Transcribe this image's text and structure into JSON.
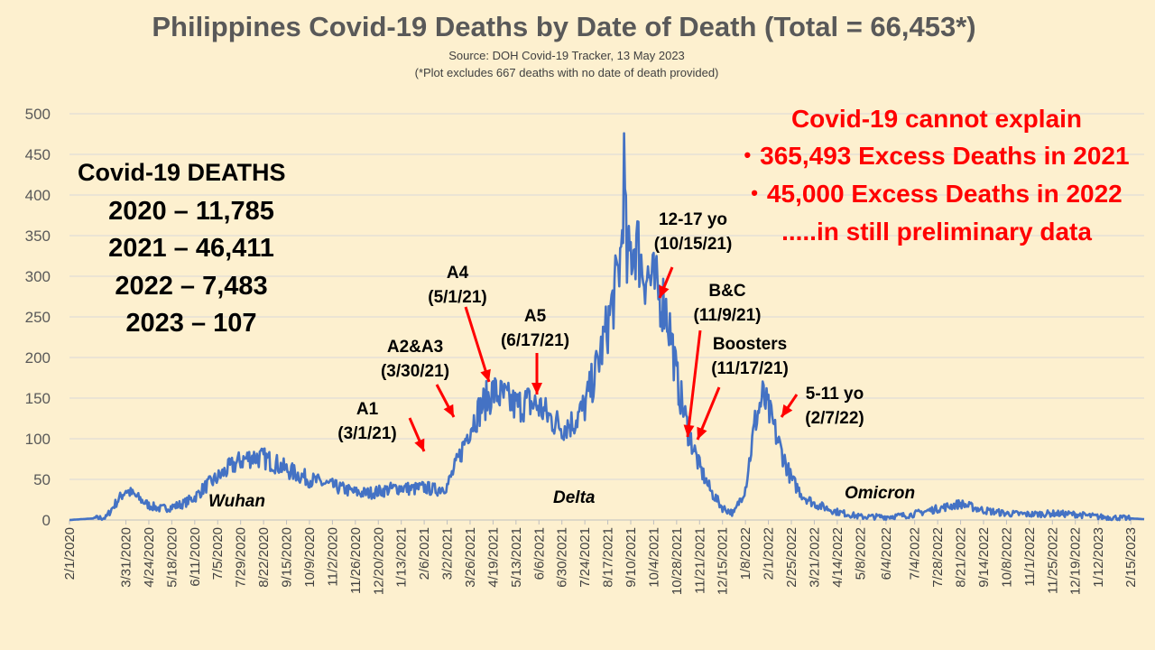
{
  "title": "Philippines Covid-19 Deaths by Date of Death (Total = 66,453*)",
  "subtitle": "Source: DOH Covid-19 Tracker, 13 May 2023",
  "footnote": "(*Plot excludes 667 deaths with no date of death provided)",
  "totals": {
    "heading": "Covid-19 DEATHS",
    "lines": [
      "2020 – 11,785",
      "2021 – 46,411",
      "2022 – 7,483",
      "2023 – 107"
    ]
  },
  "excess": {
    "heading": "Covid-19 cannot explain",
    "bullet1": "365,493 Excess Deaths in 2021",
    "bullet2": "45,000 Excess Deaths in 2022",
    "note": ".....in still preliminary data",
    "bullet_char": "•"
  },
  "annotations": {
    "a1": {
      "line1": "A1",
      "line2": "(3/1/21)"
    },
    "a2a3": {
      "line1": "A2&A3",
      "line2": "(3/30/21)"
    },
    "a4": {
      "line1": "A4",
      "line2": "(5/1/21)"
    },
    "a5": {
      "line1": "A5",
      "line2": "(6/17/21)"
    },
    "teen": {
      "line1": "12-17 yo",
      "line2": "(10/15/21)"
    },
    "bc": {
      "line1": "B&C",
      "line2": "(11/9/21)"
    },
    "boosters": {
      "line1": "Boosters",
      "line2": "(11/17/21)"
    },
    "kids": {
      "line1": "5-11 yo",
      "line2": "(2/7/22)"
    }
  },
  "waves": {
    "wuhan": "Wuhan",
    "delta": "Delta",
    "omicron": "Omicron"
  },
  "colors": {
    "background": "#fdf0cf",
    "line": "#4472c4",
    "arrow": "#ff0000",
    "grid": "#d9d9d9"
  },
  "chart_data": {
    "type": "line",
    "title": "Philippines Covid-19 Deaths by Date of Death (Total = 66,453*)",
    "xlabel": "",
    "ylabel": "",
    "x_start": "2/1/2020",
    "x_end": "3/1/2023",
    "ylim": [
      0,
      500
    ],
    "yticks": [
      0,
      50,
      100,
      150,
      200,
      250,
      300,
      350,
      400,
      450,
      500
    ],
    "grid": true,
    "legend": "none",
    "xtick_labels": [
      "2/1/2020",
      "3/31/2020",
      "4/24/2020",
      "5/18/2020",
      "6/11/2020",
      "7/5/2020",
      "7/29/2020",
      "8/22/2020",
      "9/15/2020",
      "10/9/2020",
      "11/2/2020",
      "11/26/2020",
      "12/20/2020",
      "1/13/2021",
      "2/6/2021",
      "3/2/2021",
      "3/26/2021",
      "4/19/2021",
      "5/13/2021",
      "6/6/2021",
      "6/30/2021",
      "7/24/2021",
      "8/17/2021",
      "9/10/2021",
      "10/4/2021",
      "10/28/2021",
      "11/21/2021",
      "12/15/2021",
      "1/8/2022",
      "2/1/2022",
      "2/25/2022",
      "3/21/2022",
      "4/14/2022",
      "5/8/2022",
      "6/4/2022",
      "7/4/2022",
      "7/28/2022",
      "8/21/2022",
      "9/14/2022",
      "10/8/2022",
      "11/1/2022",
      "11/25/2022",
      "12/19/2022",
      "1/12/2023",
      "2/15/2023"
    ],
    "series": [
      {
        "values_note": "approximate daily deaths, sampled by date",
        "points": [
          [
            "2/1/2020",
            0
          ],
          [
            "3/10/2020",
            3
          ],
          [
            "3/20/2020",
            20
          ],
          [
            "3/31/2020",
            37
          ],
          [
            "4/12/2020",
            28
          ],
          [
            "4/24/2020",
            18
          ],
          [
            "5/6/2020",
            14
          ],
          [
            "5/18/2020",
            16
          ],
          [
            "5/30/2020",
            20
          ],
          [
            "6/11/2020",
            28
          ],
          [
            "6/23/2020",
            42
          ],
          [
            "7/5/2020",
            52
          ],
          [
            "7/17/2020",
            64
          ],
          [
            "7/29/2020",
            73
          ],
          [
            "8/10/2020",
            78
          ],
          [
            "8/22/2020",
            76
          ],
          [
            "9/3/2020",
            70
          ],
          [
            "9/15/2020",
            62
          ],
          [
            "9/27/2020",
            56
          ],
          [
            "10/9/2020",
            50
          ],
          [
            "10/21/2020",
            46
          ],
          [
            "11/2/2020",
            42
          ],
          [
            "11/14/2020",
            38
          ],
          [
            "11/26/2020",
            34
          ],
          [
            "12/8/2020",
            33
          ],
          [
            "12/20/2020",
            35
          ],
          [
            "1/1/2021",
            38
          ],
          [
            "1/13/2021",
            40
          ],
          [
            "1/25/2021",
            38
          ],
          [
            "2/6/2021",
            40
          ],
          [
            "2/18/2021",
            37
          ],
          [
            "3/2/2021",
            42
          ],
          [
            "3/14/2021",
            75
          ],
          [
            "3/26/2021",
            115
          ],
          [
            "4/7/2021",
            140
          ],
          [
            "4/19/2021",
            158
          ],
          [
            "5/1/2021",
            150
          ],
          [
            "5/13/2021",
            140
          ],
          [
            "5/25/2021",
            145
          ],
          [
            "6/6/2021",
            140
          ],
          [
            "6/18/2021",
            125
          ],
          [
            "6/30/2021",
            115
          ],
          [
            "7/12/2021",
            120
          ],
          [
            "7/24/2021",
            140
          ],
          [
            "8/5/2021",
            185
          ],
          [
            "8/17/2021",
            240
          ],
          [
            "8/26/2021",
            290
          ],
          [
            "8/31/2021",
            330
          ],
          [
            "9/3/2021",
            430
          ],
          [
            "9/6/2021",
            310
          ],
          [
            "9/10/2021",
            330
          ],
          [
            "9/16/2021",
            345
          ],
          [
            "9/22/2021",
            310
          ],
          [
            "10/4/2021",
            290
          ],
          [
            "10/16/2021",
            265
          ],
          [
            "10/22/2021",
            230
          ],
          [
            "10/28/2021",
            175
          ],
          [
            "11/9/2021",
            110
          ],
          [
            "11/21/2021",
            65
          ],
          [
            "12/3/2021",
            35
          ],
          [
            "12/15/2021",
            15
          ],
          [
            "12/27/2021",
            8
          ],
          [
            "1/8/2022",
            40
          ],
          [
            "1/18/2022",
            120
          ],
          [
            "1/26/2022",
            152
          ],
          [
            "2/1/2022",
            135
          ],
          [
            "2/13/2022",
            90
          ],
          [
            "2/25/2022",
            50
          ],
          [
            "3/9/2022",
            30
          ],
          [
            "3/21/2022",
            20
          ],
          [
            "4/14/2022",
            10
          ],
          [
            "5/8/2022",
            4
          ],
          [
            "6/4/2022",
            4
          ],
          [
            "6/28/2022",
            6
          ],
          [
            "7/28/2022",
            14
          ],
          [
            "8/21/2022",
            20
          ],
          [
            "9/14/2022",
            12
          ],
          [
            "10/8/2022",
            8
          ],
          [
            "11/1/2022",
            7
          ],
          [
            "11/25/2022",
            8
          ],
          [
            "12/19/2022",
            7
          ],
          [
            "1/12/2023",
            4
          ],
          [
            "2/15/2023",
            2
          ],
          [
            "3/1/2023",
            1
          ]
        ]
      }
    ]
  }
}
